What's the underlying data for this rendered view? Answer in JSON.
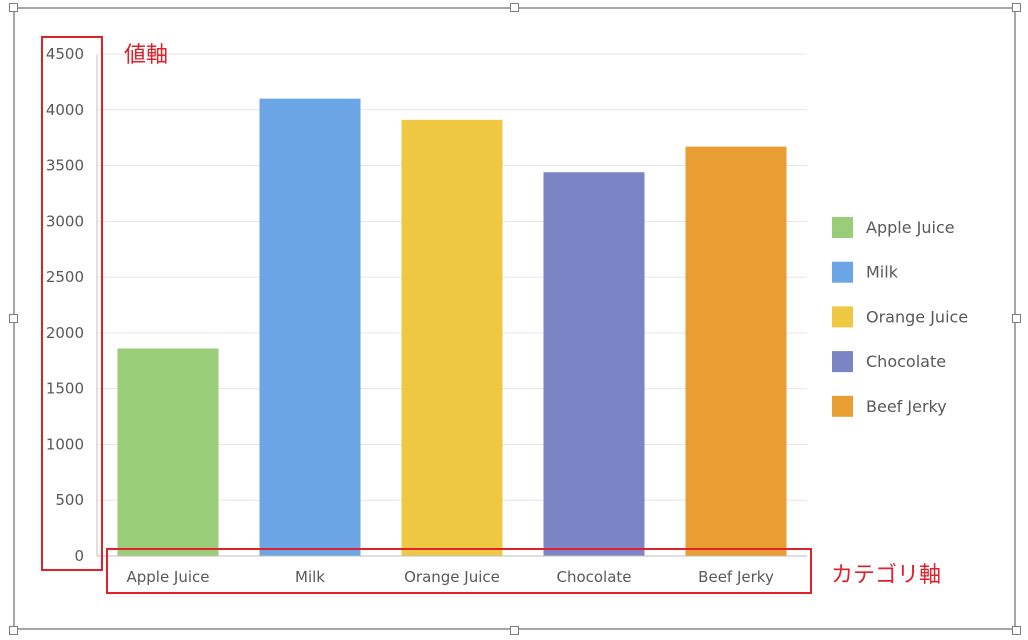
{
  "chart_data": {
    "type": "bar",
    "categories": [
      "Apple Juice",
      "Milk",
      "Orange Juice",
      "Chocolate",
      "Beef Jerky"
    ],
    "values": [
      1860,
      4100,
      3910,
      3440,
      3670
    ],
    "colors": [
      "#9acd78",
      "#6ca5e5",
      "#eec843",
      "#7b84c4",
      "#e89e32"
    ],
    "ylim": [
      0,
      4500
    ],
    "yticks": [
      0,
      500,
      1000,
      1500,
      2000,
      2500,
      3000,
      3500,
      4000,
      4500
    ],
    "legend": [
      "Apple Juice",
      "Milk",
      "Orange Juice",
      "Chocolate",
      "Beef Jerky"
    ],
    "legend_position": "right",
    "grid": true,
    "annotations": {
      "value_axis": "値軸",
      "category_axis": "カテゴリ軸",
      "highlight_color": "#e0202a"
    }
  }
}
